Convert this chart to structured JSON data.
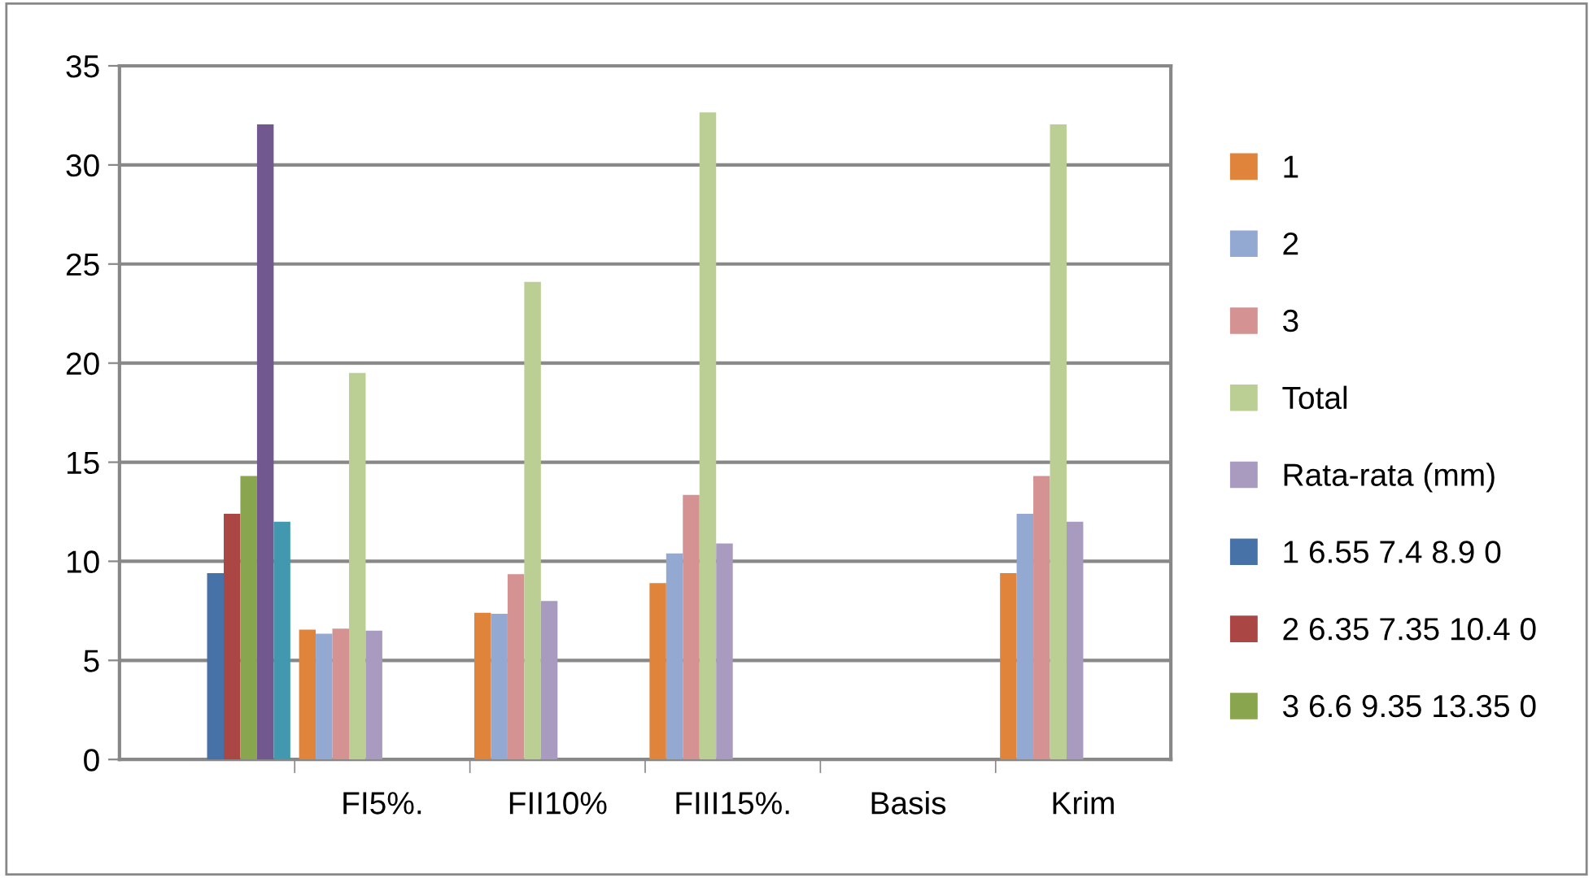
{
  "chart_data": {
    "type": "bar",
    "categories": [
      null,
      "FI5%.",
      "FII10%",
      "FIII15%.",
      "Basis",
      "Krim"
    ],
    "series": [
      {
        "name": "1",
        "color": "#e0843c",
        "values": [
          null,
          6.55,
          7.4,
          8.9,
          0,
          9.4
        ]
      },
      {
        "name": "2",
        "color": "#93a9d1",
        "values": [
          null,
          6.35,
          7.35,
          10.4,
          0,
          12.4
        ]
      },
      {
        "name": "3",
        "color": "#d49392",
        "values": [
          null,
          6.6,
          9.35,
          13.35,
          0,
          14.3
        ]
      },
      {
        "name": "Total",
        "color": "#bbcf95",
        "values": [
          null,
          19.5,
          24.1,
          32.65,
          0,
          32.05
        ]
      },
      {
        "name": "Rata-rata (mm)",
        "color": "#a99bbf",
        "values": [
          null,
          6.5,
          8.0,
          10.9,
          0,
          12.0
        ]
      },
      {
        "name": "1 6.55 7.4 8.9 0",
        "color": "#4672a8",
        "values": [
          9.4,
          null,
          null,
          null,
          null,
          null
        ]
      },
      {
        "name": "2 6.35 7.35 10.4 0",
        "color": "#aa4644",
        "values": [
          12.4,
          null,
          null,
          null,
          null,
          null
        ]
      },
      {
        "name": "3 6.6 9.35 13.35 0",
        "color": "#89a54e",
        "values": [
          14.3,
          null,
          null,
          null,
          null,
          null
        ]
      },
      {
        "color": "#71588f",
        "values": [
          32.05,
          null,
          null,
          null,
          null,
          null
        ]
      },
      {
        "color": "#4298af",
        "values": [
          12.0,
          null,
          null,
          null,
          null,
          null
        ]
      }
    ],
    "ylim": [
      0,
      35
    ],
    "yticks": [
      0,
      5,
      10,
      15,
      20,
      25,
      30,
      35
    ],
    "grid": "y",
    "legend": "right"
  }
}
